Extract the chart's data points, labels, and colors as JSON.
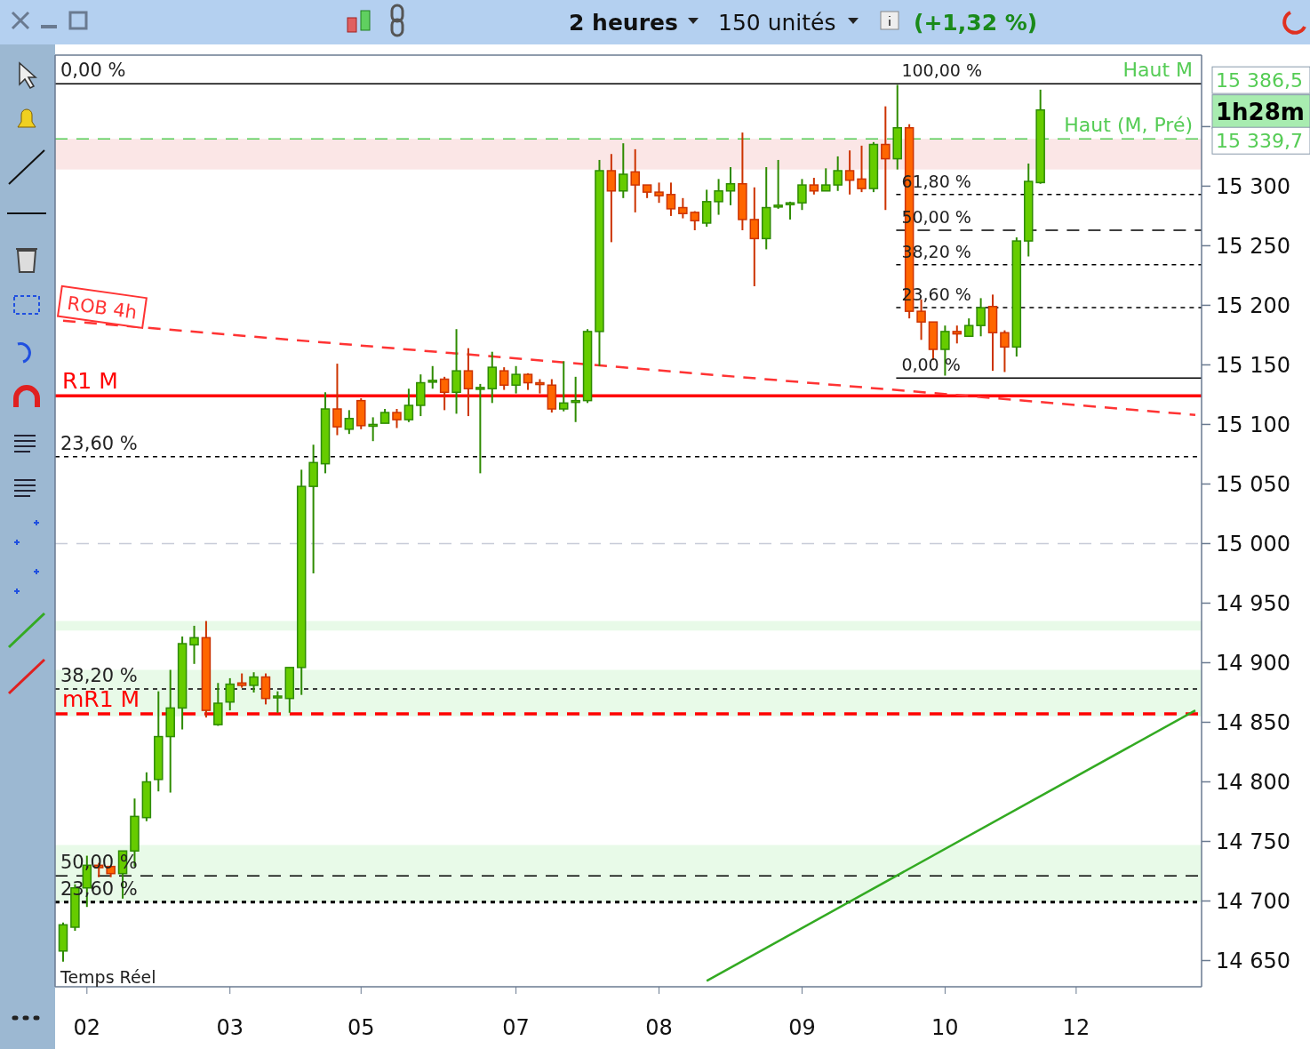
{
  "chart_data": {
    "type": "candlestick",
    "title": "2 heures",
    "subtitle": "150 unités",
    "categories": [
      null,
      null,
      "02",
      null,
      null,
      null,
      null,
      null,
      null,
      null,
      null,
      null,
      null,
      null,
      "03",
      null,
      null,
      null,
      null,
      null,
      null,
      null,
      null,
      null,
      null,
      "05",
      null,
      null,
      null,
      null,
      null,
      null,
      null,
      null,
      null,
      null,
      null,
      null,
      "07",
      null,
      null,
      null,
      null,
      null,
      null,
      null,
      null,
      null,
      null,
      null,
      "08",
      null,
      null,
      null,
      null,
      null,
      null,
      null,
      null,
      null,
      null,
      null,
      "09",
      null,
      null,
      null,
      null,
      null,
      null,
      null,
      null,
      null,
      null,
      null,
      "10",
      null,
      null,
      null,
      null,
      null,
      null,
      null,
      null,
      null,
      null,
      "12",
      null,
      null,
      null,
      null,
      null,
      null,
      null,
      null,
      null,
      null
    ],
    "ohlc": [
      [
        14658,
        14682,
        14649,
        14680
      ],
      [
        14678,
        14714,
        14675,
        14711
      ],
      [
        14711,
        14738,
        14695,
        14730
      ],
      [
        14730,
        14732,
        14720,
        14728
      ],
      [
        14729,
        14729,
        14720,
        14723
      ],
      [
        14723,
        14742,
        14702,
        14742
      ],
      [
        14742,
        14786,
        14729,
        14771
      ],
      [
        14770,
        14808,
        14767,
        14800
      ],
      [
        14802,
        14876,
        14792,
        14838
      ],
      [
        14838,
        14894,
        14791,
        14862
      ],
      [
        14862,
        14922,
        14844,
        14916
      ],
      [
        14915,
        14931,
        14899,
        14921
      ],
      [
        14921,
        14935,
        14854,
        14860
      ],
      [
        14848,
        14883,
        14847,
        14866
      ],
      [
        14867,
        14887,
        14860,
        14882
      ],
      [
        14883,
        14891,
        14879,
        14881
      ],
      [
        14881,
        14892,
        14875,
        14888
      ],
      [
        14888,
        14891,
        14865,
        14870
      ],
      [
        14871,
        14876,
        14858,
        14872
      ],
      [
        14870,
        14896,
        14858,
        14896
      ],
      [
        14896,
        15062,
        14873,
        15048
      ],
      [
        15048,
        15083,
        14975,
        15068
      ],
      [
        15067,
        15127,
        15059,
        15113
      ],
      [
        15113,
        15151,
        15091,
        15098
      ],
      [
        15096,
        15112,
        15092,
        15105
      ],
      [
        15120,
        15122,
        15096,
        15099
      ],
      [
        15099,
        15106,
        15086,
        15100
      ],
      [
        15101,
        15113,
        15101,
        15110
      ],
      [
        15110,
        15113,
        15097,
        15104
      ],
      [
        15104,
        15130,
        15102,
        15116
      ],
      [
        15116,
        15142,
        15107,
        15135
      ],
      [
        15136,
        15149,
        15130,
        15137
      ],
      [
        15138,
        15140,
        15112,
        15127
      ],
      [
        15127,
        15180,
        15109,
        15145
      ],
      [
        15145,
        15164,
        15107,
        15130
      ],
      [
        15130,
        15134,
        15059,
        15131
      ],
      [
        15130,
        15161,
        15118,
        15148
      ],
      [
        15145,
        15148,
        15129,
        15133
      ],
      [
        15133,
        15149,
        15126,
        15142
      ],
      [
        15142,
        15143,
        15129,
        15135
      ],
      [
        15135,
        15138,
        15126,
        15134
      ],
      [
        15133,
        15138,
        15110,
        15113
      ],
      [
        15113,
        15153,
        15111,
        15118
      ],
      [
        15119,
        15140,
        15102,
        15120
      ],
      [
        15120,
        15180,
        15118,
        15178
      ],
      [
        15178,
        15322,
        15149,
        15313
      ],
      [
        15313,
        15327,
        15253,
        15296
      ],
      [
        15296,
        15336,
        15290,
        15310
      ],
      [
        15312,
        15331,
        15278,
        15301
      ],
      [
        15301,
        15301,
        15290,
        15295
      ],
      [
        15295,
        15303,
        15286,
        15292
      ],
      [
        15293,
        15303,
        15275,
        15281
      ],
      [
        15282,
        15290,
        15273,
        15277
      ],
      [
        15278,
        15279,
        15263,
        15271
      ],
      [
        15269,
        15297,
        15266,
        15287
      ],
      [
        15287,
        15306,
        15276,
        15296
      ],
      [
        15296,
        15316,
        15284,
        15302
      ],
      [
        15302,
        15345,
        15263,
        15272
      ],
      [
        15272,
        15299,
        15216,
        15256
      ],
      [
        15256,
        15316,
        15247,
        15282
      ],
      [
        15283,
        15322,
        15281,
        15284
      ],
      [
        15285,
        15287,
        15272,
        15286
      ],
      [
        15286,
        15306,
        15280,
        15301
      ],
      [
        15301,
        15307,
        15293,
        15296
      ],
      [
        15296,
        15315,
        15296,
        15301
      ],
      [
        15301,
        15325,
        15296,
        15313
      ],
      [
        15313,
        15330,
        15293,
        15305
      ],
      [
        15306,
        15334,
        15295,
        15298
      ],
      [
        15298,
        15337,
        15295,
        15335
      ],
      [
        15335,
        15367,
        15280,
        15323
      ],
      [
        15323,
        15385,
        15314,
        15349
      ],
      [
        15349,
        15352,
        15189,
        15195
      ],
      [
        15195,
        15205,
        15171,
        15186
      ],
      [
        15186,
        15186,
        15154,
        15163
      ],
      [
        15163,
        15183,
        15141,
        15178
      ],
      [
        15178,
        15183,
        15168,
        15176
      ],
      [
        15174,
        15189,
        15174,
        15183
      ],
      [
        15183,
        15206,
        15174,
        15198
      ],
      [
        15199,
        15209,
        15145,
        15177
      ],
      [
        15177,
        15179,
        15144,
        15165
      ],
      [
        15165,
        15257,
        15157,
        15254
      ],
      [
        15254,
        15319,
        15241,
        15304
      ],
      [
        15303,
        15381,
        15302,
        15364
      ],
      null,
      null,
      null,
      null,
      null,
      null,
      null,
      null,
      null,
      null,
      null,
      null,
      null
    ],
    "series": [
      {
        "type": "line",
        "name": "ROB 4h",
        "color": "#ff3333",
        "line_style": "dashed",
        "values": [
          15187,
          null,
          null,
          null,
          null,
          null,
          null,
          null,
          null,
          null,
          null,
          null,
          null,
          null,
          null,
          null,
          null,
          null,
          null,
          null,
          null,
          null,
          null,
          null,
          null,
          null,
          null,
          null,
          null,
          null,
          null,
          null,
          null,
          null,
          null,
          null,
          null,
          null,
          null,
          null,
          null,
          null,
          null,
          null,
          null,
          null,
          null,
          null,
          null,
          null,
          null,
          null,
          null,
          null,
          null,
          null,
          null,
          null,
          null,
          null,
          null,
          null,
          null,
          null,
          null,
          null,
          null,
          null,
          null,
          null,
          null,
          null,
          null,
          null,
          null,
          null,
          null,
          null,
          null,
          null,
          null,
          null,
          null,
          null,
          null,
          null,
          null,
          null,
          null,
          null,
          null,
          null,
          null,
          null,
          null,
          15108
        ]
      },
      {
        "type": "line",
        "color": "#33aa22",
        "line_style": "solid",
        "values": [
          null,
          null,
          null,
          null,
          null,
          null,
          null,
          null,
          null,
          null,
          null,
          null,
          null,
          null,
          null,
          null,
          null,
          null,
          null,
          null,
          null,
          null,
          null,
          null,
          null,
          null,
          null,
          null,
          null,
          null,
          null,
          null,
          null,
          null,
          null,
          null,
          null,
          null,
          null,
          null,
          null,
          null,
          null,
          null,
          null,
          null,
          null,
          null,
          null,
          null,
          null,
          null,
          null,
          null,
          14633,
          null,
          null,
          null,
          null,
          null,
          null,
          null,
          null,
          null,
          null,
          null,
          null,
          null,
          null,
          null,
          null,
          null,
          null,
          null,
          null,
          null,
          null,
          null,
          null,
          null,
          null,
          null,
          null,
          null,
          null,
          null,
          null,
          null,
          null,
          null,
          null,
          null,
          null,
          null,
          null,
          14860
        ]
      }
    ],
    "ylim": [
      14628,
      15410
    ],
    "yticks": [
      {
        "value": 14650,
        "label": "14 650"
      },
      {
        "value": 14700,
        "label": "14 700"
      },
      {
        "value": 14750,
        "label": "14 750"
      },
      {
        "value": 14800,
        "label": "14 800"
      },
      {
        "value": 14850,
        "label": "14 850"
      },
      {
        "value": 14900,
        "label": "14 900"
      },
      {
        "value": 14950,
        "label": "14 950"
      },
      {
        "value": 15000,
        "label": "15 000"
      },
      {
        "value": 15050,
        "label": "15 050"
      },
      {
        "value": 15100,
        "label": "15 100"
      },
      {
        "value": 15150,
        "label": "15 150"
      },
      {
        "value": 15200,
        "label": "15 200"
      },
      {
        "value": 15250,
        "label": "15 250"
      },
      {
        "value": 15300,
        "label": "15 300"
      },
      {
        "value": 15350,
        "label": null
      }
    ],
    "grid": false,
    "ref_lines": [
      {
        "axis": "y",
        "value": 15386,
        "label": null,
        "color": "#000000",
        "line_style": "solid"
      },
      {
        "axis": "y",
        "value": 15339.7,
        "label": "Haut (M, Pré)",
        "color": "#55cc55",
        "line_style": "dashed"
      },
      {
        "axis": "y",
        "value": 15293,
        "label": null,
        "color": "#000000",
        "line_style": "dotted"
      },
      {
        "axis": "y",
        "value": 15263,
        "label": null,
        "color": "#000000",
        "line_style": "dashed"
      },
      {
        "axis": "y",
        "value": 15234,
        "label": null,
        "color": "#000000",
        "line_style": "dotted"
      },
      {
        "axis": "y",
        "value": 15198,
        "label": null,
        "color": "#000000",
        "line_style": "dotted"
      },
      {
        "axis": "y",
        "value": 15139,
        "label": null,
        "color": "#000000",
        "line_style": "solid"
      },
      {
        "axis": "y",
        "value": 15124,
        "label": "R1 M",
        "color": "#ff0000",
        "line_style": "solid"
      },
      {
        "axis": "y",
        "value": 15073,
        "label": null,
        "color": "#000000",
        "line_style": "dotted"
      },
      {
        "axis": "y",
        "value": 15000,
        "label": null,
        "color": "#c8ccd8",
        "line_style": "dashed"
      },
      {
        "axis": "y",
        "value": 14878,
        "label": null,
        "color": "#000000",
        "line_style": "dotted"
      },
      {
        "axis": "y",
        "value": 14857,
        "label": "mR1 M",
        "color": "#ff0000",
        "line_style": "dashed"
      },
      {
        "axis": "y",
        "value": 14721,
        "label": null,
        "color": "#000000",
        "line_style": "dashed"
      },
      {
        "axis": "y",
        "value": 14699,
        "label": null,
        "color": "#000000",
        "line_style": "dotted"
      }
    ],
    "bands": [
      {
        "axis": "y",
        "from": 15314,
        "to": 15339.7,
        "color": "#fbe6e6"
      },
      {
        "axis": "y",
        "from": 14927,
        "to": 14935,
        "color": "#e8fae8"
      },
      {
        "axis": "y",
        "from": 14855,
        "to": 14894,
        "color": "#e8fae8"
      },
      {
        "axis": "y",
        "from": 14699,
        "to": 14747,
        "color": "#e8fae8"
      }
    ],
    "annotations": [
      {
        "text": "0,00 %",
        "y": 15386
      },
      {
        "text": "100,00 %",
        "y": 15386
      },
      {
        "text": "Haut M",
        "y": 15386
      },
      {
        "text": "61,80 %",
        "y": 15293
      },
      {
        "text": "50,00 %",
        "y": 15263
      },
      {
        "text": "38,20 %",
        "y": 15234
      },
      {
        "text": "23,60 %",
        "y": 15198
      },
      {
        "text": "0,00 %",
        "y": 15139
      },
      {
        "text": "23,60 %",
        "y": 15073
      },
      {
        "text": "38,20 %",
        "y": 14878
      },
      {
        "text": "50,00 %",
        "y": 14721
      },
      {
        "text": "23,60 %",
        "y": 14699
      },
      "15 386,5",
      "1h28m",
      "15 339,7",
      "(+1,32 %)",
      "Temps Réel"
    ]
  }
}
